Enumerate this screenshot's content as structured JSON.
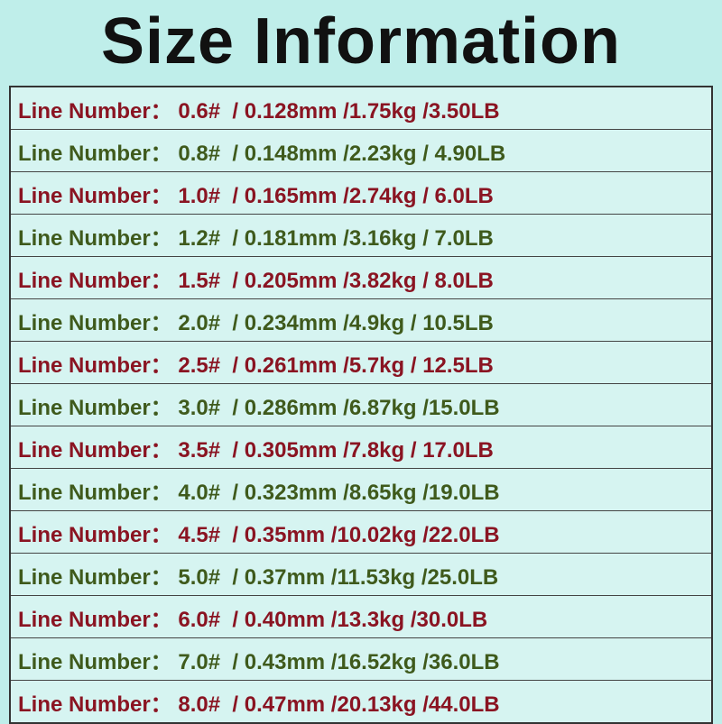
{
  "title": "Size Information",
  "row_colors": [
    "#8a1422",
    "#3f5a1c"
  ],
  "rows": [
    [
      "Line Number：",
      " 0.6#  / 0.128mm /1.75kg /3.50LB"
    ],
    [
      "Line Number：",
      " 0.8#  / 0.148mm /2.23kg / 4.90LB"
    ],
    [
      "Line Number：",
      " 1.0#  / 0.165mm /2.74kg / 6.0LB"
    ],
    [
      "Line Number：",
      " 1.2#  / 0.181mm /3.16kg / 7.0LB"
    ],
    [
      "Line Number：",
      " 1.5#  / 0.205mm /3.82kg / 8.0LB"
    ],
    [
      "Line Number：",
      " 2.0#  / 0.234mm /4.9kg / 10.5LB"
    ],
    [
      "Line Number：",
      " 2.5#  / 0.261mm /5.7kg / 12.5LB"
    ],
    [
      "Line Number：",
      " 3.0#  / 0.286mm /6.87kg /15.0LB"
    ],
    [
      "Line Number：",
      " 3.5#  / 0.305mm /7.8kg / 17.0LB"
    ],
    [
      "Line Number：",
      " 4.0#  / 0.323mm /8.65kg /19.0LB"
    ],
    [
      "Line Number：",
      " 4.5#  / 0.35mm /10.02kg /22.0LB"
    ],
    [
      "Line Number：",
      " 5.0#  / 0.37mm /11.53kg /25.0LB"
    ],
    [
      "Line Number：",
      " 6.0#  / 0.40mm /13.3kg /30.0LB"
    ],
    [
      "Line Number：",
      " 7.0#  / 0.43mm /16.52kg /36.0LB"
    ],
    [
      "Line Number：",
      " 8.0#  / 0.47mm /20.13kg /44.0LB"
    ]
  ]
}
